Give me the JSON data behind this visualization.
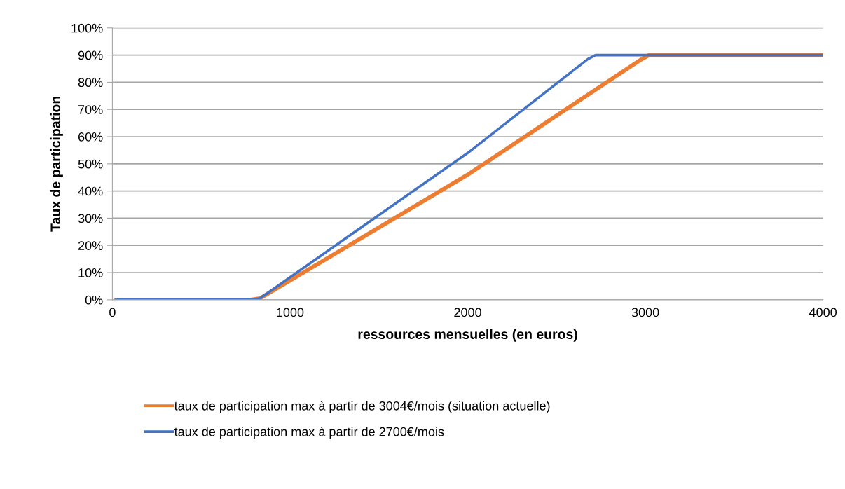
{
  "chart_data": {
    "type": "line",
    "xlabel": "ressources mensuelles (en euros)",
    "ylabel": "Taux de participation",
    "series": [
      {
        "name": "taux de participation max à partir de 3004€/mois (situation actuelle)",
        "color": "#ed7d31",
        "x": [
          20,
          780,
          830,
          2000,
          2979,
          3020,
          4000
        ],
        "values": [
          0,
          0,
          0.5,
          46,
          88.5,
          90,
          90
        ]
      },
      {
        "name": "taux de participation max à partir de 2700€/mois",
        "color": "#4472c4",
        "x": [
          20,
          780,
          830,
          2000,
          2676,
          2720,
          4000
        ],
        "values": [
          0,
          0,
          0.5,
          54,
          88.5,
          90,
          90
        ]
      }
    ],
    "xlim": [
      0,
      4000
    ],
    "xticks": [
      0,
      1000,
      2000,
      3000,
      4000
    ],
    "ylim": [
      0,
      100
    ],
    "yticks": [
      {
        "value": 0,
        "label": "0%"
      },
      {
        "value": 10,
        "label": "10%"
      },
      {
        "value": 20,
        "label": "20%"
      },
      {
        "value": 30,
        "label": "30%"
      },
      {
        "value": 40,
        "label": "40%"
      },
      {
        "value": 50,
        "label": "50%"
      },
      {
        "value": 60,
        "label": "60%"
      },
      {
        "value": 70,
        "label": "70%"
      },
      {
        "value": 80,
        "label": "80%"
      },
      {
        "value": 90,
        "label": "90%"
      },
      {
        "value": 100,
        "label": "100%"
      }
    ],
    "grid": "y",
    "legend": "bottom",
    "marker": "none",
    "line_style": "solid"
  }
}
